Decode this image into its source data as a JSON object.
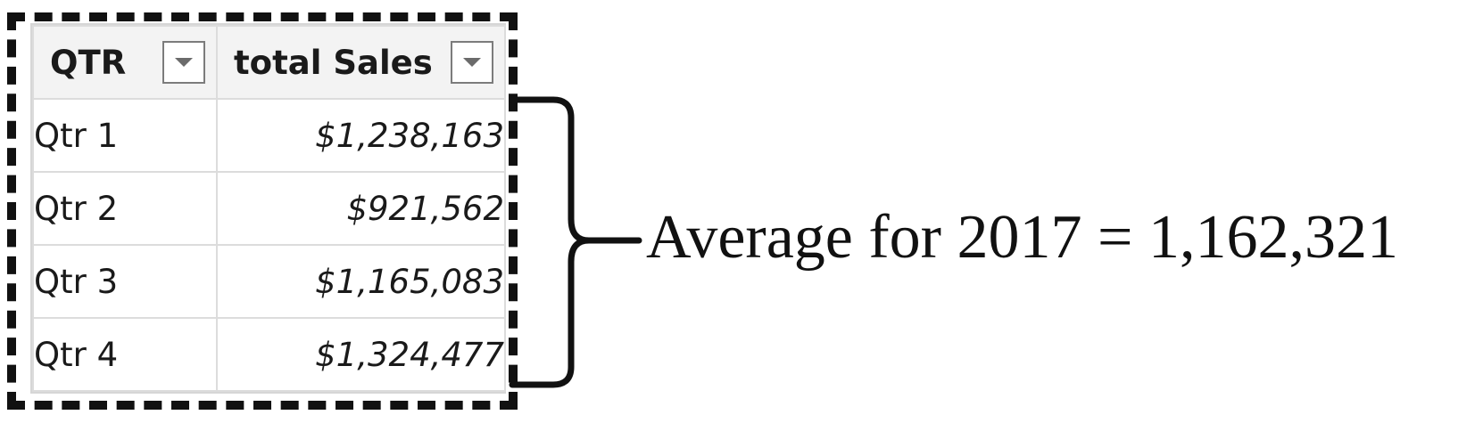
{
  "table": {
    "columns": [
      {
        "label": "QTR",
        "filter_icon": "dropdown-arrow-icon"
      },
      {
        "label": "total Sales",
        "filter_icon": "dropdown-arrow-icon"
      }
    ],
    "rows": [
      {
        "qtr": "Qtr 1",
        "sales": "$1,238,163"
      },
      {
        "qtr": "Qtr 2",
        "sales": "$921,562"
      },
      {
        "qtr": "Qtr 3",
        "sales": "$1,165,083"
      },
      {
        "qtr": "Qtr 4",
        "sales": "$1,324,477"
      }
    ]
  },
  "annotation": {
    "text": "Average for 2017 = 1,162,321"
  },
  "colors": {
    "frame": "#111111",
    "header_bg": "#f3f3f3",
    "grid": "#dcdcdc"
  }
}
